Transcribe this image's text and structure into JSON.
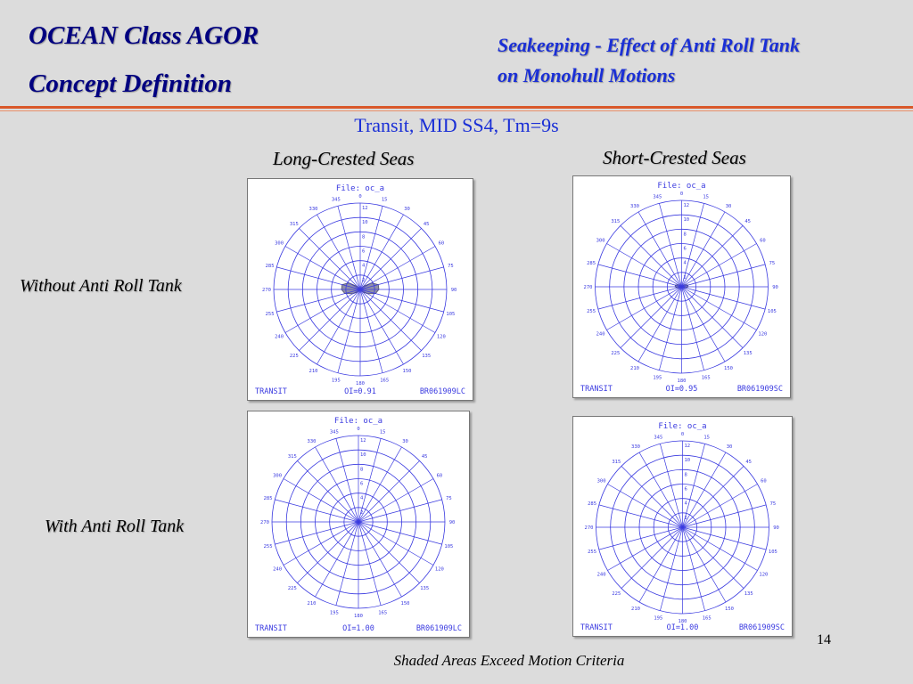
{
  "slide": {
    "title_line1": "OCEAN Class AGOR",
    "title_line2": "Concept Definition",
    "subtitle_line1": "Seakeeping - Effect of Anti Roll Tank",
    "subtitle_line2": "on Monohull Motions",
    "condition": "Transit, MID SS4, Tm=9s",
    "column_headers": [
      "Long-Crested Seas",
      "Short-Crested Seas"
    ],
    "row_headers": [
      "Without Anti Roll Tank",
      "With Anti Roll Tank"
    ],
    "page_number": "14",
    "footnote": "Shaded Areas Exceed Motion Criteria"
  },
  "chart_data": [
    {
      "type": "polar",
      "file_label": "File: oc_a",
      "condition_label": "TRANSIT",
      "index_label": "OI=0.91",
      "run_id": "BR061909LC",
      "radial_ticks": [
        "2",
        "4",
        "6",
        "8",
        "10",
        "12"
      ],
      "heading_ticks": [
        "0",
        "15",
        "30",
        "45",
        "60",
        "75",
        "90",
        "105",
        "120",
        "135",
        "150",
        "165",
        "180",
        "195",
        "210",
        "225",
        "240",
        "255",
        "270",
        "285",
        "300",
        "315",
        "330",
        "345"
      ],
      "shaded_region": {
        "headings": [
          0,
          15,
          30,
          45,
          60,
          75,
          90,
          105,
          120,
          135,
          150,
          165,
          180,
          195,
          210,
          225,
          240,
          255,
          270,
          285,
          300,
          315,
          330,
          345
        ],
        "speeds": [
          0,
          0,
          0,
          0.6,
          1.8,
          2.6,
          2.6,
          2.2,
          1.2,
          0.5,
          0,
          0,
          0,
          0,
          0,
          0.5,
          1.2,
          2.2,
          2.6,
          2.6,
          1.8,
          0.6,
          0,
          0
        ]
      }
    },
    {
      "type": "polar",
      "file_label": "File: oc_a",
      "condition_label": "TRANSIT",
      "index_label": "OI=0.95",
      "run_id": "BR061909SC",
      "radial_ticks": [
        "2",
        "4",
        "6",
        "8",
        "10",
        "12"
      ],
      "heading_ticks": [
        "0",
        "15",
        "30",
        "45",
        "60",
        "75",
        "90",
        "105",
        "120",
        "135",
        "150",
        "165",
        "180",
        "195",
        "210",
        "225",
        "240",
        "255",
        "270",
        "285",
        "300",
        "315",
        "330",
        "345"
      ],
      "shaded_region": {
        "headings": [
          0,
          15,
          30,
          45,
          60,
          75,
          90,
          105,
          120,
          135,
          150,
          165,
          180,
          195,
          210,
          225,
          240,
          255,
          270,
          285,
          300,
          315,
          330,
          345
        ],
        "speeds": [
          0,
          0,
          0,
          0.3,
          0.6,
          0.9,
          0.9,
          0.6,
          0.3,
          0,
          0,
          0,
          0,
          0,
          0,
          0,
          0.3,
          0.6,
          0.9,
          0.9,
          0.6,
          0.3,
          0,
          0
        ]
      }
    },
    {
      "type": "polar",
      "file_label": "File: oc_a",
      "condition_label": "TRANSIT",
      "index_label": "OI=1.00",
      "run_id": "BR061909LC",
      "radial_ticks": [
        "2",
        "4",
        "6",
        "8",
        "10",
        "12"
      ],
      "heading_ticks": [
        "0",
        "15",
        "30",
        "45",
        "60",
        "75",
        "90",
        "105",
        "120",
        "135",
        "150",
        "165",
        "180",
        "195",
        "210",
        "225",
        "240",
        "255",
        "270",
        "285",
        "300",
        "315",
        "330",
        "345"
      ],
      "shaded_region": null
    },
    {
      "type": "polar",
      "file_label": "File: oc_a",
      "condition_label": "TRANSIT",
      "index_label": "OI=1.00",
      "run_id": "BR061909SC",
      "radial_ticks": [
        "2",
        "4",
        "6",
        "8",
        "10",
        "12"
      ],
      "heading_ticks": [
        "0",
        "15",
        "30",
        "45",
        "60",
        "75",
        "90",
        "105",
        "120",
        "135",
        "150",
        "165",
        "180",
        "195",
        "210",
        "225",
        "240",
        "255",
        "270",
        "285",
        "300",
        "315",
        "330",
        "345"
      ],
      "shaded_region": null
    }
  ],
  "colors": {
    "title": "#000080",
    "subtitle": "#1a2fd6",
    "rule": "#d9582b",
    "grid": "#3a3ae0",
    "shade": "#9090a8",
    "background": "#dcdcdc"
  }
}
